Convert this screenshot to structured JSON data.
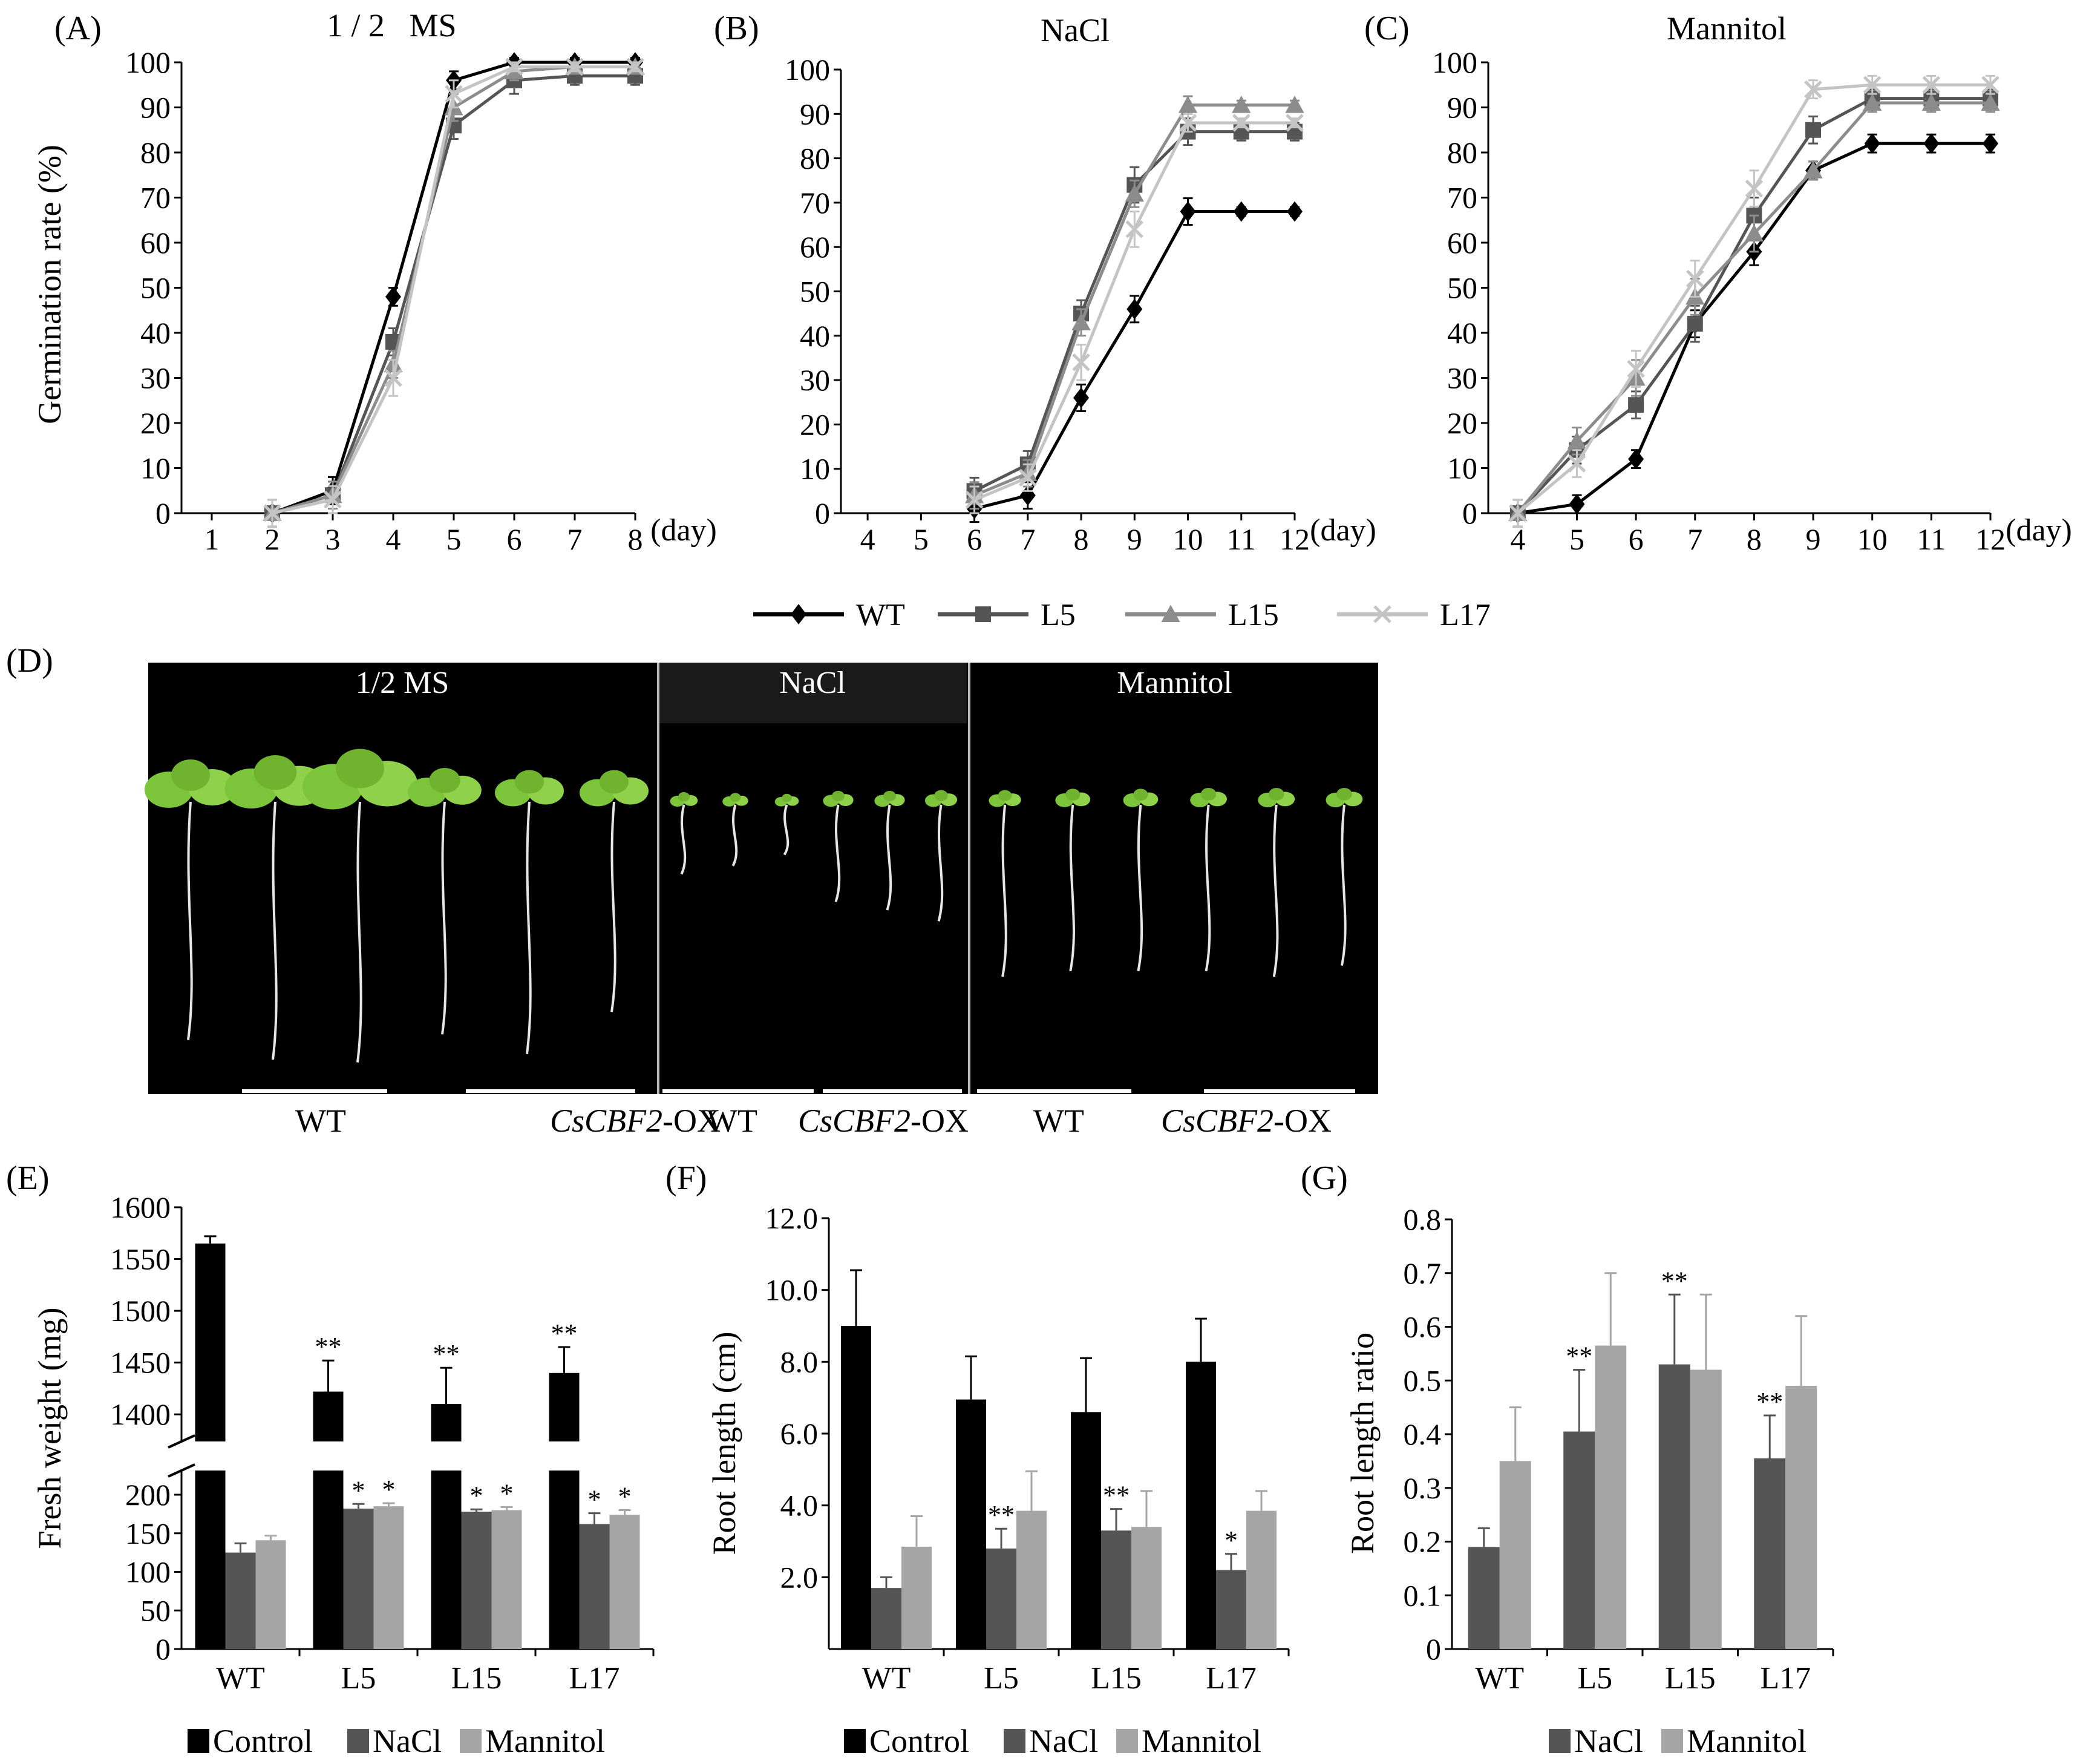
{
  "colors": {
    "WT": "#000000",
    "L5": "#555555",
    "L15": "#8c8c8c",
    "L17": "#c4c4c4",
    "Control": "#000000",
    "NaCl": "#555555",
    "Mannitol": "#a5a5a5",
    "plant_bg": "#000000",
    "leaf": "#7cc43a",
    "root": "#e6e6e6"
  },
  "line_legend": [
    {
      "key": "WT",
      "label": "WT",
      "marker": "diamond"
    },
    {
      "key": "L5",
      "label": "L5",
      "marker": "square"
    },
    {
      "key": "L15",
      "label": "L15",
      "marker": "triangle"
    },
    {
      "key": "L17",
      "label": "L17",
      "marker": "cross"
    }
  ],
  "photo": {
    "panel_label": "(D)",
    "sections": [
      {
        "title": "1/2 MS",
        "plants": [
          {
            "leaf": 1.0,
            "root": 0.85
          },
          {
            "leaf": 1.1,
            "root": 0.92
          },
          {
            "leaf": 1.25,
            "root": 0.93
          },
          {
            "leaf": 0.8,
            "root": 0.83
          },
          {
            "leaf": 0.75,
            "root": 0.9
          },
          {
            "leaf": 0.75,
            "root": 0.75
          }
        ]
      },
      {
        "title": "NaCl",
        "plants": [
          {
            "leaf": 0.3,
            "root": 0.25
          },
          {
            "leaf": 0.28,
            "root": 0.22
          },
          {
            "leaf": 0.26,
            "root": 0.18
          },
          {
            "leaf": 0.33,
            "root": 0.35
          },
          {
            "leaf": 0.33,
            "root": 0.38
          },
          {
            "leaf": 0.35,
            "root": 0.42
          }
        ]
      },
      {
        "title": "Mannitol",
        "plants": [
          {
            "leaf": 0.35,
            "root": 0.62
          },
          {
            "leaf": 0.38,
            "root": 0.6
          },
          {
            "leaf": 0.38,
            "root": 0.6
          },
          {
            "leaf": 0.4,
            "root": 0.6
          },
          {
            "leaf": 0.4,
            "root": 0.62
          },
          {
            "leaf": 0.4,
            "root": 0.58
          }
        ]
      }
    ],
    "captions": [
      {
        "label": "WT",
        "italic": ""
      },
      {
        "label": "-OX",
        "italic": "CsCBF2"
      },
      {
        "label": "WT",
        "italic": ""
      },
      {
        "label": "-OX",
        "italic": "CsCBF2"
      },
      {
        "label": "WT",
        "italic": ""
      },
      {
        "label": "-OX",
        "italic": "CsCBF2"
      }
    ]
  },
  "chart_data": [
    {
      "id": "A",
      "panel_label": "(A)",
      "type": "line",
      "title": "1 / 2   MS",
      "xlabel": "(day)",
      "ylabel": "Germination rate (%)",
      "x_ticks": [
        1,
        2,
        3,
        4,
        5,
        6,
        7,
        8
      ],
      "ylim": [
        0,
        100
      ],
      "y_ticks": [
        0,
        10,
        20,
        30,
        40,
        50,
        60,
        70,
        80,
        90,
        100
      ],
      "series": [
        {
          "name": "WT",
          "x": [
            2,
            3,
            4,
            5,
            6,
            7,
            8
          ],
          "values": [
            0,
            5,
            48,
            96,
            100,
            100,
            100
          ],
          "err": [
            3,
            3,
            2,
            2,
            1,
            1,
            1
          ]
        },
        {
          "name": "L5",
          "x": [
            2,
            3,
            4,
            5,
            6,
            7,
            8
          ],
          "values": [
            0,
            4,
            38,
            86,
            96,
            97,
            97
          ],
          "err": [
            3,
            3,
            3,
            3,
            3,
            2,
            2
          ]
        },
        {
          "name": "L15",
          "x": [
            2,
            3,
            4,
            5,
            6,
            7,
            8
          ],
          "values": [
            0,
            4,
            33,
            90,
            98,
            99,
            99
          ],
          "err": [
            3,
            3,
            3,
            3,
            2,
            1,
            1
          ]
        },
        {
          "name": "L17",
          "x": [
            2,
            3,
            4,
            5,
            6,
            7,
            8
          ],
          "values": [
            0,
            3,
            30,
            93,
            99,
            99,
            99
          ],
          "err": [
            3,
            3,
            4,
            3,
            1,
            1,
            1
          ]
        }
      ]
    },
    {
      "id": "B",
      "panel_label": "(B)",
      "type": "line",
      "title": "NaCl",
      "xlabel": "(day)",
      "ylabel": "",
      "x_ticks": [
        4,
        5,
        6,
        7,
        8,
        9,
        10,
        11,
        12
      ],
      "ylim": [
        0,
        100
      ],
      "y_ticks": [
        0,
        10,
        20,
        30,
        40,
        50,
        60,
        70,
        80,
        90,
        100
      ],
      "series": [
        {
          "name": "WT",
          "x": [
            6,
            7,
            8,
            9,
            10,
            11,
            12
          ],
          "values": [
            1,
            4,
            26,
            46,
            68,
            68,
            68
          ],
          "err": [
            3,
            3,
            3,
            3,
            3,
            1,
            1
          ]
        },
        {
          "name": "L5",
          "x": [
            6,
            7,
            8,
            9,
            10,
            11,
            12
          ],
          "values": [
            5,
            11,
            45,
            74,
            86,
            86,
            86
          ],
          "err": [
            3,
            3,
            3,
            4,
            3,
            2,
            2
          ]
        },
        {
          "name": "L15",
          "x": [
            6,
            7,
            8,
            9,
            10,
            11,
            12
          ],
          "values": [
            4,
            9,
            43,
            72,
            92,
            92,
            92
          ],
          "err": [
            3,
            3,
            3,
            3,
            2,
            1,
            1
          ]
        },
        {
          "name": "L17",
          "x": [
            6,
            7,
            8,
            9,
            10,
            11,
            12
          ],
          "values": [
            3,
            8,
            34,
            64,
            88,
            88,
            88
          ],
          "err": [
            3,
            3,
            4,
            4,
            2,
            1,
            1
          ]
        }
      ]
    },
    {
      "id": "C",
      "panel_label": "(C)",
      "type": "line",
      "title": "Mannitol",
      "xlabel": "(day)",
      "ylabel": "",
      "x_ticks": [
        4,
        5,
        6,
        7,
        8,
        9,
        10,
        11,
        12
      ],
      "ylim": [
        0,
        100
      ],
      "y_ticks": [
        0,
        10,
        20,
        30,
        40,
        50,
        60,
        70,
        80,
        90,
        100
      ],
      "series": [
        {
          "name": "WT",
          "x": [
            4,
            5,
            6,
            7,
            8,
            9,
            10,
            11,
            12
          ],
          "values": [
            0,
            2,
            12,
            42,
            58,
            76,
            82,
            82,
            82
          ],
          "err": [
            3,
            2,
            2,
            3,
            3,
            2,
            2,
            2,
            2
          ]
        },
        {
          "name": "L5",
          "x": [
            4,
            5,
            6,
            7,
            8,
            9,
            10,
            11,
            12
          ],
          "values": [
            0,
            14,
            24,
            42,
            66,
            85,
            92,
            92,
            92
          ],
          "err": [
            3,
            3,
            3,
            4,
            4,
            3,
            2,
            2,
            2
          ]
        },
        {
          "name": "L15",
          "x": [
            4,
            5,
            6,
            7,
            8,
            9,
            10,
            11,
            12
          ],
          "values": [
            0,
            16,
            30,
            48,
            62,
            76,
            91,
            91,
            91
          ],
          "err": [
            3,
            3,
            4,
            4,
            4,
            2,
            2,
            2,
            2
          ]
        },
        {
          "name": "L17",
          "x": [
            4,
            5,
            6,
            7,
            8,
            9,
            10,
            11,
            12
          ],
          "values": [
            0,
            11,
            32,
            52,
            72,
            94,
            95,
            95,
            95
          ],
          "err": [
            3,
            3,
            4,
            4,
            4,
            2,
            2,
            2,
            2
          ]
        }
      ]
    },
    {
      "id": "E",
      "panel_label": "(E)",
      "type": "bar",
      "ylabel": "Fresh weight (mg)",
      "categories": [
        "WT",
        "L5",
        "L15",
        "L17"
      ],
      "legend": [
        "Control",
        "NaCl",
        "Mannitol"
      ],
      "broken_axis": {
        "lower_range": [
          0,
          200
        ],
        "lower_ticks": [
          0,
          50,
          100,
          150,
          200
        ],
        "upper_range": [
          1375,
          1600
        ],
        "upper_ticks": [
          1400,
          1450,
          1500,
          1550,
          1600
        ]
      },
      "series": [
        {
          "name": "Control",
          "values": [
            1565,
            1422,
            1410,
            1440
          ],
          "err": [
            7,
            30,
            35,
            25
          ],
          "sig": [
            "",
            "**",
            "**",
            "**"
          ]
        },
        {
          "name": "NaCl",
          "values": [
            125,
            182,
            178,
            162
          ],
          "err": [
            12,
            6,
            3,
            14
          ],
          "sig": [
            "",
            "*",
            "*",
            "*"
          ]
        },
        {
          "name": "Mannitol",
          "values": [
            141,
            185,
            180,
            174
          ],
          "err": [
            6,
            4,
            4,
            6
          ],
          "sig": [
            "",
            "*",
            "*",
            "*"
          ]
        }
      ]
    },
    {
      "id": "F",
      "panel_label": "(F)",
      "type": "bar",
      "ylabel": "Root length (cm)",
      "categories": [
        "WT",
        "L5",
        "L15",
        "L17"
      ],
      "legend": [
        "Control",
        "NaCl",
        "Mannitol"
      ],
      "ylim": [
        0,
        12
      ],
      "y_ticks": [
        2.0,
        4.0,
        6.0,
        8.0,
        10.0,
        12.0
      ],
      "series": [
        {
          "name": "Control",
          "values": [
            9.0,
            6.95,
            6.6,
            8.0
          ],
          "err": [
            1.55,
            1.2,
            1.5,
            1.2
          ],
          "sig": [
            "",
            "",
            "",
            ""
          ]
        },
        {
          "name": "NaCl",
          "values": [
            1.7,
            2.8,
            3.3,
            2.2
          ],
          "err": [
            0.3,
            0.55,
            0.6,
            0.45
          ],
          "sig": [
            "",
            "**",
            "**",
            "*"
          ]
        },
        {
          "name": "Mannitol",
          "values": [
            2.85,
            3.85,
            3.4,
            3.85
          ],
          "err": [
            0.85,
            1.1,
            1.0,
            0.55
          ],
          "sig": [
            "",
            "",
            "",
            ""
          ]
        }
      ]
    },
    {
      "id": "G",
      "panel_label": "(G)",
      "type": "bar",
      "ylabel": "Root length ratio",
      "categories": [
        "WT",
        "L5",
        "L15",
        "L17"
      ],
      "legend": [
        "NaCl",
        "Mannitol"
      ],
      "ylim": [
        0,
        0.8
      ],
      "y_ticks": [
        0,
        0.1,
        0.2,
        0.3,
        0.4,
        0.5,
        0.6,
        0.7,
        0.8
      ],
      "series": [
        {
          "name": "NaCl",
          "values": [
            0.19,
            0.405,
            0.53,
            0.355
          ],
          "err": [
            0.035,
            0.115,
            0.13,
            0.08
          ],
          "sig": [
            "",
            "**",
            "**",
            "**"
          ]
        },
        {
          "name": "Mannitol",
          "values": [
            0.35,
            0.565,
            0.52,
            0.49
          ],
          "err": [
            0.1,
            0.135,
            0.14,
            0.13
          ],
          "sig": [
            "",
            "",
            "",
            ""
          ]
        }
      ]
    }
  ]
}
